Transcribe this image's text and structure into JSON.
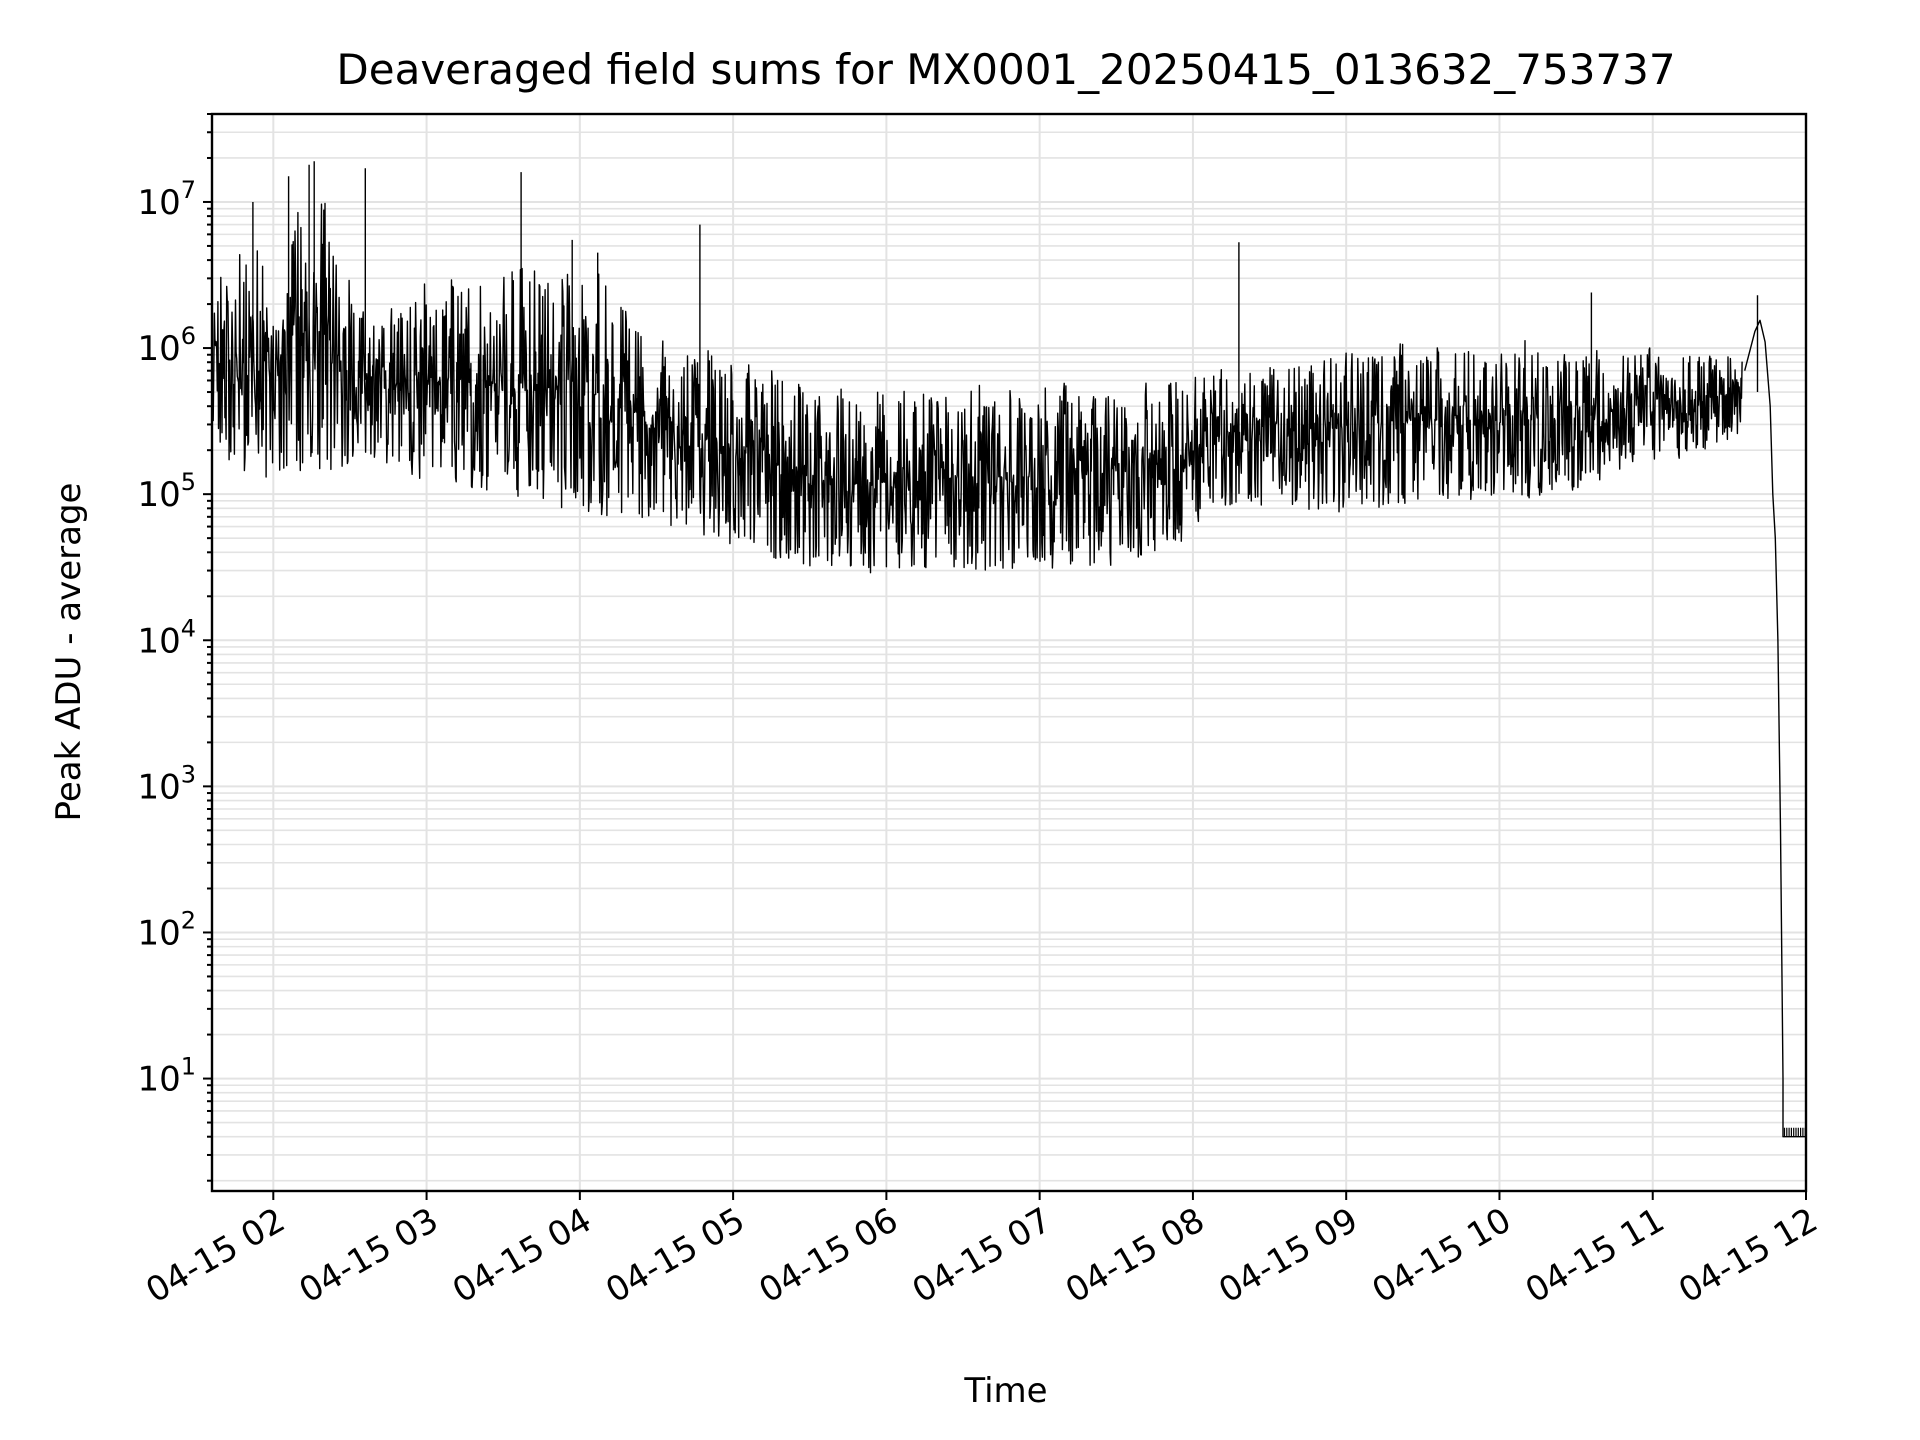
{
  "chart_data": {
    "type": "line",
    "title": "Deaveraged field sums for MX0001_20250415_013632_753737",
    "xlabel": "Time",
    "ylabel": "Peak ADU - average",
    "yscale": "log",
    "grid": true,
    "line_color": "#000000",
    "grid_color": "#e3e3e3",
    "xlim": [
      "04-15 01:36",
      "04-15 12:00"
    ],
    "ylim": [
      1.7,
      40000000
    ],
    "x_ticks": [
      "04-15 02",
      "04-15 03",
      "04-15 04",
      "04-15 05",
      "04-15 06",
      "04-15 07",
      "04-15 08",
      "04-15 09",
      "04-15 10",
      "04-15 11",
      "04-15 12"
    ],
    "y_ticks": [
      {
        "base": "10",
        "exp": "1",
        "value": 10
      },
      {
        "base": "10",
        "exp": "2",
        "value": 100
      },
      {
        "base": "10",
        "exp": "3",
        "value": 1000
      },
      {
        "base": "10",
        "exp": "4",
        "value": 10000
      },
      {
        "base": "10",
        "exp": "5",
        "value": 100000
      },
      {
        "base": "10",
        "exp": "6",
        "value": 1000000
      },
      {
        "base": "10",
        "exp": "7",
        "value": 10000000
      }
    ],
    "series": [
      {
        "envelope": [
          {
            "x": "04-15 01:36",
            "low": 250000,
            "high": 2800000
          },
          {
            "x": "04-15 01:45",
            "low": 150000,
            "high": 4500000
          },
          {
            "x": "04-15 02:00",
            "low": 120000,
            "high": 5000000
          },
          {
            "x": "04-15 02:15",
            "low": 130000,
            "high": 19000000
          },
          {
            "x": "04-15 02:30",
            "low": 150000,
            "high": 3000000
          },
          {
            "x": "04-15 02:45",
            "low": 150000,
            "high": 1800000
          },
          {
            "x": "04-15 03:00",
            "low": 120000,
            "high": 3000000
          },
          {
            "x": "04-15 03:30",
            "low": 100000,
            "high": 3200000
          },
          {
            "x": "04-15 04:00",
            "low": 70000,
            "high": 5000000
          },
          {
            "x": "04-15 04:30",
            "low": 60000,
            "high": 1200000
          },
          {
            "x": "04-15 05:00",
            "low": 45000,
            "high": 1000000
          },
          {
            "x": "04-15 05:30",
            "low": 30000,
            "high": 550000
          },
          {
            "x": "04-15 06:00",
            "low": 28000,
            "high": 550000
          },
          {
            "x": "04-15 06:30",
            "low": 30000,
            "high": 550000
          },
          {
            "x": "04-15 07:00",
            "low": 30000,
            "high": 580000
          },
          {
            "x": "04-15 07:30",
            "low": 32000,
            "high": 600000
          },
          {
            "x": "04-15 08:00",
            "low": 50000,
            "high": 600000
          },
          {
            "x": "04-15 08:05",
            "low": 80000,
            "high": 800000
          },
          {
            "x": "04-15 08:30",
            "low": 80000,
            "high": 950000
          },
          {
            "x": "04-15 09:00",
            "low": 75000,
            "high": 1050000
          },
          {
            "x": "04-15 09:30",
            "low": 90000,
            "high": 1150000
          },
          {
            "x": "04-15 10:00",
            "low": 90000,
            "high": 1150000
          },
          {
            "x": "04-15 10:30",
            "low": 100000,
            "high": 1100000
          },
          {
            "x": "04-15 11:00",
            "low": 150000,
            "high": 1050000
          },
          {
            "x": "04-15 11:35",
            "low": 250000,
            "high": 1000000
          }
        ],
        "spikes": [
          {
            "x": "04-15 01:52",
            "y": 10000000
          },
          {
            "x": "04-15 02:06",
            "y": 15000000
          },
          {
            "x": "04-15 02:14",
            "y": 18000000
          },
          {
            "x": "04-15 02:16",
            "y": 19000000
          },
          {
            "x": "04-15 02:36",
            "y": 17000000
          },
          {
            "x": "04-15 03:37",
            "y": 16000000
          },
          {
            "x": "04-15 03:57",
            "y": 5500000
          },
          {
            "x": "04-15 04:07",
            "y": 4500000
          },
          {
            "x": "04-15 04:47",
            "y": 7000000
          },
          {
            "x": "04-15 08:18",
            "y": 5300000
          },
          {
            "x": "04-15 10:36",
            "y": 2400000
          },
          {
            "x": "04-15 11:41",
            "y": 2300000
          }
        ],
        "tail": [
          {
            "x": "04-15 11:36",
            "y": 700000
          },
          {
            "x": "04-15 11:40",
            "y": 1300000
          },
          {
            "x": "04-15 11:42",
            "y": 1550000
          },
          {
            "x": "04-15 11:44",
            "y": 1100000
          },
          {
            "x": "04-15 11:46",
            "y": 400000
          },
          {
            "x": "04-15 11:47",
            "y": 100000
          },
          {
            "x": "04-15 11:48",
            "y": 50000
          },
          {
            "x": "04-15 11:49",
            "y": 10000
          },
          {
            "x": "04-15 11:50",
            "y": 500
          },
          {
            "x": "04-15 11:51",
            "y": 10
          },
          {
            "x": "04-15 11:51",
            "y": 4
          },
          {
            "x": "04-15 12:00",
            "y": 4
          }
        ]
      }
    ]
  }
}
